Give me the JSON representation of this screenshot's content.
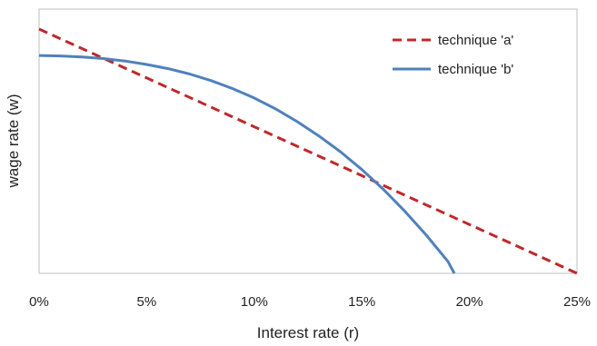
{
  "chart_data": {
    "type": "line",
    "title": "",
    "xlabel": "Interest rate (r)",
    "ylabel": "wage rate (w)",
    "x_ticks": [
      "0%",
      "5%",
      "10%",
      "15%",
      "20%",
      "25%"
    ],
    "xlim": [
      0,
      25
    ],
    "ylim": [
      0,
      100
    ],
    "grid": false,
    "legend_position": "top-right",
    "series": [
      {
        "name": "technique 'a'",
        "style": "dashed",
        "color": "#C0282A",
        "x": [
          0,
          5,
          10,
          15,
          20,
          25
        ],
        "y": [
          100,
          80,
          60,
          40,
          20,
          0
        ]
      },
      {
        "name": "technique 'b'",
        "style": "solid",
        "color": "#4F81BD",
        "x": [
          0,
          1,
          2,
          3,
          4,
          5,
          6,
          7,
          8,
          9,
          10,
          11,
          12,
          13,
          14,
          15,
          16,
          17,
          18,
          19,
          19.3
        ],
        "y": [
          89.2,
          89.0,
          88.6,
          87.9,
          86.9,
          85.5,
          83.8,
          81.6,
          78.9,
          75.6,
          71.8,
          67.3,
          62.1,
          56.3,
          49.8,
          42.5,
          34.4,
          25.4,
          15.6,
          4.9,
          0
        ]
      }
    ]
  }
}
